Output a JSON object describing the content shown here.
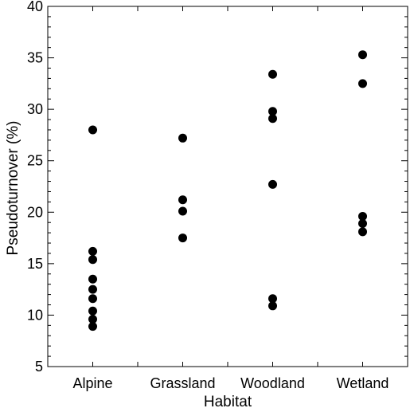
{
  "chart_data": {
    "type": "scatter",
    "xlabel": "Habitat",
    "ylabel": "Pseudoturnover (%)",
    "categories": [
      "Alpine",
      "Grassland",
      "Woodland",
      "Wetland"
    ],
    "ylim": [
      5,
      40
    ],
    "yticks": [
      "5",
      "10",
      "15",
      "20",
      "25",
      "30",
      "35",
      "40"
    ],
    "grid": false,
    "legend": "none",
    "marker_color": "#000000",
    "series": [
      {
        "points": [
          {
            "x": "Alpine",
            "y": 28.0
          },
          {
            "x": "Alpine",
            "y": 16.2
          },
          {
            "x": "Alpine",
            "y": 15.4
          },
          {
            "x": "Alpine",
            "y": 13.5
          },
          {
            "x": "Alpine",
            "y": 12.5
          },
          {
            "x": "Alpine",
            "y": 11.6
          },
          {
            "x": "Alpine",
            "y": 10.4
          },
          {
            "x": "Alpine",
            "y": 9.6
          },
          {
            "x": "Alpine",
            "y": 8.9
          },
          {
            "x": "Grassland",
            "y": 27.2
          },
          {
            "x": "Grassland",
            "y": 21.2
          },
          {
            "x": "Grassland",
            "y": 20.1
          },
          {
            "x": "Grassland",
            "y": 17.5
          },
          {
            "x": "Woodland",
            "y": 33.4
          },
          {
            "x": "Woodland",
            "y": 29.8
          },
          {
            "x": "Woodland",
            "y": 29.1
          },
          {
            "x": "Woodland",
            "y": 22.7
          },
          {
            "x": "Woodland",
            "y": 11.6
          },
          {
            "x": "Woodland",
            "y": 10.9
          },
          {
            "x": "Wetland",
            "y": 35.3
          },
          {
            "x": "Wetland",
            "y": 32.5
          },
          {
            "x": "Wetland",
            "y": 19.6
          },
          {
            "x": "Wetland",
            "y": 18.9
          },
          {
            "x": "Wetland",
            "y": 18.1
          }
        ]
      }
    ]
  }
}
